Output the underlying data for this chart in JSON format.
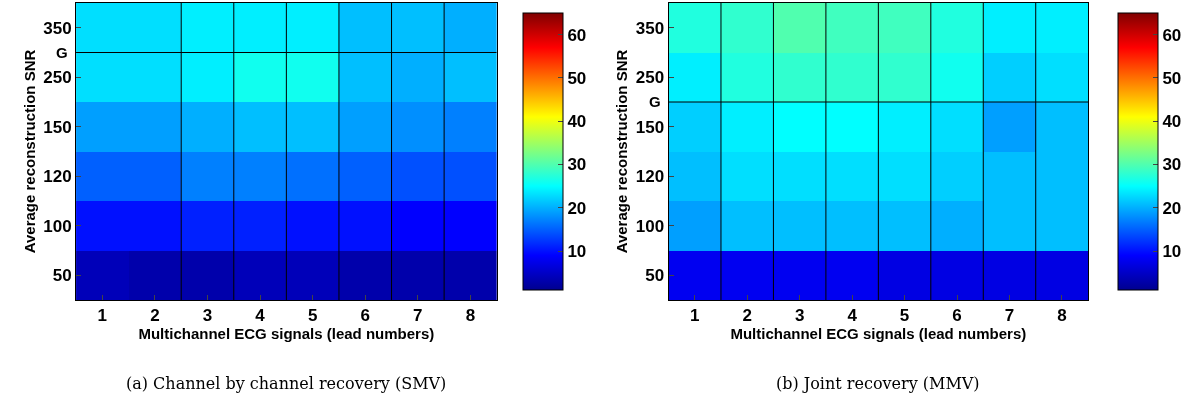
{
  "chart_data": [
    {
      "type": "heatmap",
      "xlabel": "Multichannel ECG signals (lead numbers)",
      "ylabel": "Average reconstruction SNR",
      "categories": [
        "1",
        "2",
        "3",
        "4",
        "5",
        "6",
        "7",
        "8"
      ],
      "y_categories": [
        "350",
        "250",
        "150",
        "120",
        "100",
        "50"
      ],
      "cells": [
        [
          23,
          23,
          24,
          24,
          24,
          21,
          21,
          20
        ],
        [
          23,
          23,
          24,
          26,
          26,
          21,
          20,
          21
        ],
        [
          19,
          19,
          20,
          21,
          21,
          19,
          18,
          17
        ],
        [
          15,
          15,
          17,
          17,
          16,
          15,
          14,
          14
        ],
        [
          10,
          10,
          11,
          11,
          10,
          10,
          9,
          9
        ],
        [
          4,
          3,
          3,
          4,
          4,
          3,
          3,
          3
        ]
      ],
      "clim": [
        1,
        65
      ],
      "cticks": [
        10,
        20,
        30,
        40,
        50,
        60
      ],
      "annotations": [
        "G",
        "(a) Channel by channel recovery (SMV)"
      ]
    },
    {
      "type": "heatmap",
      "xlabel": "Multichannel ECG signals (lead numbers)",
      "ylabel": "Average reconstruction SNR",
      "categories": [
        "1",
        "2",
        "3",
        "4",
        "5",
        "6",
        "7",
        "8"
      ],
      "y_categories": [
        "350",
        "250",
        "150",
        "120",
        "100",
        "50"
      ],
      "cells": [
        [
          27,
          28,
          30,
          29,
          29,
          27,
          24,
          24
        ],
        [
          24,
          27,
          28,
          28,
          28,
          26,
          22,
          23
        ],
        [
          22,
          24,
          25,
          25,
          24,
          23,
          19,
          21
        ],
        [
          21,
          23,
          23,
          23,
          23,
          22,
          21,
          21
        ],
        [
          19,
          21,
          21,
          21,
          21,
          20,
          21,
          21
        ],
        [
          8,
          8,
          8,
          8,
          7,
          7,
          7,
          7
        ]
      ],
      "clim": [
        1,
        65
      ],
      "cticks": [
        10,
        20,
        30,
        40,
        50,
        60
      ],
      "annotations": [
        "G",
        "(b) Joint recovery (MMV)"
      ]
    }
  ]
}
